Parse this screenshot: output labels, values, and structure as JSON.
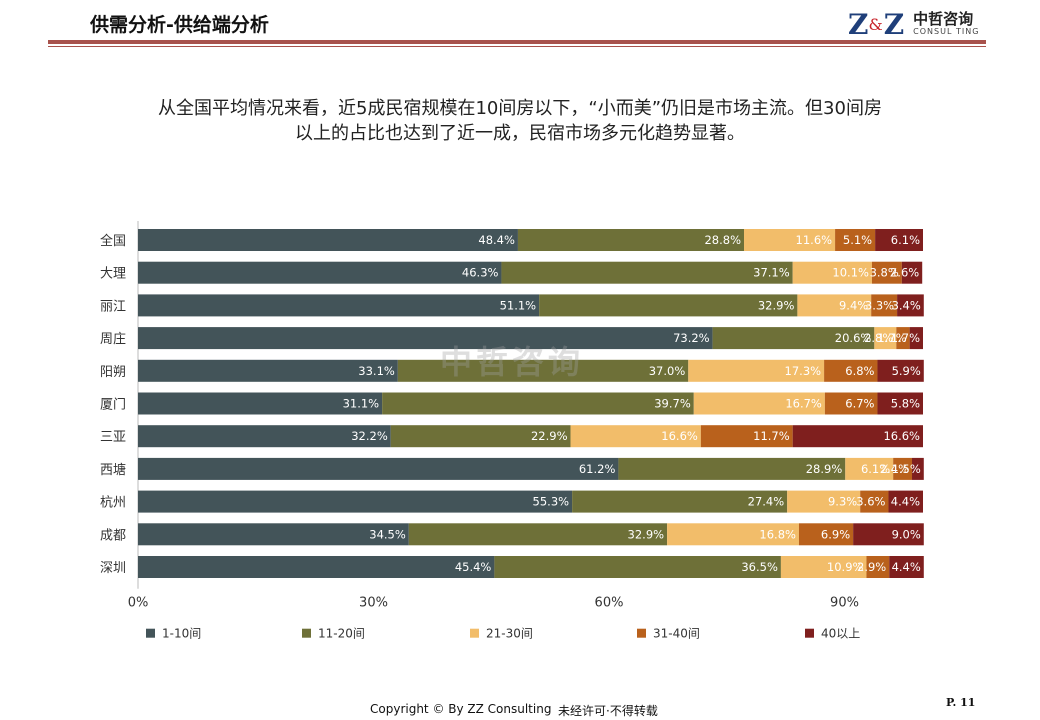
{
  "header": {
    "title": "供需分析-供给端分析",
    "logo": {
      "mark_left": "Z",
      "mark_amp": "&",
      "mark_right": "Z",
      "name_cn": "中哲咨询",
      "name_en": "CONSUL TING"
    }
  },
  "intro": {
    "line1": "从全国平均情况来看，近5成民宿规模在10间房以下，“小而美”仍旧是市场主流。但30间房",
    "line2": "以上的占比也达到了近一成，民宿市场多元化趋势显著。"
  },
  "watermark": "中哲咨询",
  "footer": {
    "copyright": "Copyright © By  ZZ Consulting",
    "note": "未经许可·不得转载",
    "page": "P. 11"
  },
  "colors": {
    "rule": "#a8524c",
    "s1": "#435459",
    "s2": "#6e7038",
    "s3": "#f2bd6a",
    "s4": "#b9611c",
    "s5": "#7f1f1e"
  },
  "chart_data": {
    "type": "bar",
    "orientation": "horizontal",
    "stacked": true,
    "categories": [
      "全国",
      "大理",
      "丽江",
      "周庄",
      "阳朔",
      "厦门",
      "三亚",
      "西塘",
      "杭州",
      "成都",
      "深圳"
    ],
    "series": [
      {
        "name": "1-10间",
        "color": "#435459",
        "values": [
          48.4,
          46.3,
          51.1,
          73.2,
          33.1,
          31.1,
          32.2,
          61.2,
          55.3,
          34.5,
          45.4
        ]
      },
      {
        "name": "11-20间",
        "color": "#6e7038",
        "values": [
          28.8,
          37.1,
          32.9,
          20.6,
          37.0,
          39.7,
          22.9,
          28.9,
          27.4,
          32.9,
          36.5
        ]
      },
      {
        "name": "21-30间",
        "color": "#f2bd6a",
        "values": [
          11.6,
          10.1,
          9.4,
          2.8,
          17.3,
          16.7,
          16.6,
          6.1,
          9.3,
          16.8,
          10.9
        ]
      },
      {
        "name": "31-40间",
        "color": "#b9611c",
        "values": [
          5.1,
          3.8,
          3.3,
          1.7,
          6.8,
          6.7,
          11.7,
          2.4,
          3.6,
          6.9,
          2.9
        ]
      },
      {
        "name": "40以上",
        "color": "#7f1f1e",
        "values": [
          6.1,
          2.6,
          3.4,
          1.7,
          5.9,
          5.8,
          16.6,
          1.5,
          4.4,
          9.0,
          4.4
        ]
      }
    ],
    "value_labels": [
      [
        "48.4%",
        "28.8%",
        "11.6%",
        "5.1%",
        "6.1%"
      ],
      [
        "46.3%",
        "37.1%",
        "10.1%",
        "3.8%",
        "2.6%"
      ],
      [
        "51.1%",
        "32.9%",
        "9.4%",
        "3.3%",
        "3.4%"
      ],
      [
        "73.2%",
        "20.6%",
        "2.8%",
        "1.7%",
        "1.7%"
      ],
      [
        "33.1%",
        "37.0%",
        "17.3%",
        "6.8%",
        "5.9%"
      ],
      [
        "31.1%",
        "39.7%",
        "16.7%",
        "6.7%",
        "5.8%"
      ],
      [
        "32.2%",
        "22.9%",
        "16.6%",
        "11.7%",
        "16.6%"
      ],
      [
        "61.2%",
        "28.9%",
        "6.1%",
        "2.4%",
        "1.5%"
      ],
      [
        "55.3%",
        "27.4%",
        "9.3%",
        "3.6%",
        "4.4%"
      ],
      [
        "34.5%",
        "32.9%",
        "16.8%",
        "6.9%",
        "9.0%"
      ],
      [
        "45.4%",
        "36.5%",
        "10.9%",
        "2.9%",
        "4.4%"
      ]
    ],
    "x_ticks": [
      "0%",
      "30%",
      "60%",
      "90%"
    ],
    "x_tick_values": [
      0,
      30,
      60,
      90
    ],
    "xlim": [
      0,
      100
    ],
    "legend_position": "bottom"
  }
}
